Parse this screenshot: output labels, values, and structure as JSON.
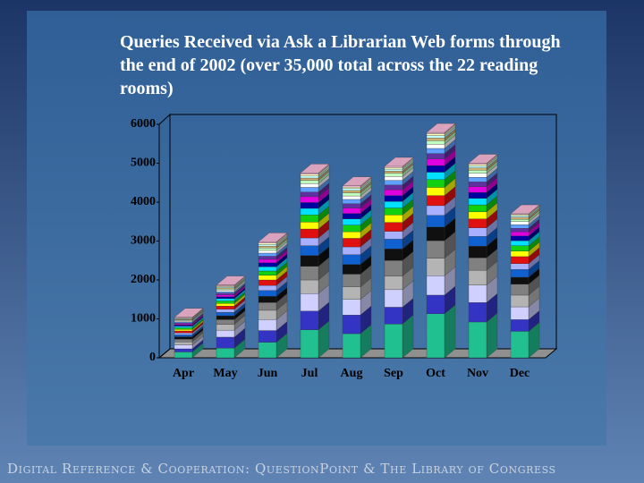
{
  "chart_data": {
    "type": "bar3d-stacked",
    "title": "Queries Received via Ask a Librarian Web forms through the end of 2002 (over 35,000 total across the 22 reading rooms)",
    "categories": [
      "Apr",
      "May",
      "Jun",
      "Jul",
      "Aug",
      "Sep",
      "Oct",
      "Nov",
      "Dec"
    ],
    "ylim": [
      0,
      6000
    ],
    "yticks": [
      0,
      1000,
      2000,
      3000,
      4000,
      5000,
      6000
    ],
    "series": [
      {
        "color": "#20c090",
        "values": [
          150,
          250,
          400,
          720,
          620,
          870,
          1130,
          920,
          680
        ]
      },
      {
        "color": "#3434c4",
        "values": [
          80,
          280,
          300,
          480,
          480,
          430,
          480,
          500,
          300
        ]
      },
      {
        "color": "#d0d0ff",
        "values": [
          100,
          180,
          280,
          450,
          400,
          450,
          500,
          450,
          330
        ]
      },
      {
        "color": "#b4b4b4",
        "values": [
          80,
          150,
          240,
          350,
          320,
          350,
          450,
          380,
          300
        ]
      },
      {
        "color": "#808080",
        "values": [
          70,
          120,
          200,
          350,
          330,
          400,
          450,
          320,
          280
        ]
      },
      {
        "color": "#101010",
        "values": [
          60,
          100,
          160,
          280,
          250,
          300,
          350,
          300,
          180
        ]
      },
      {
        "color": "#1060d0",
        "values": [
          50,
          90,
          150,
          250,
          250,
          250,
          300,
          250,
          200
        ]
      },
      {
        "color": "#a8b0ff",
        "values": [
          50,
          80,
          130,
          200,
          200,
          200,
          250,
          220,
          150
        ]
      },
      {
        "color": "#e01010",
        "values": [
          50,
          80,
          140,
          230,
          220,
          230,
          260,
          230,
          180
        ]
      },
      {
        "color": "#ffff00",
        "values": [
          40,
          70,
          120,
          180,
          170,
          190,
          210,
          180,
          140
        ]
      },
      {
        "color": "#10d010",
        "values": [
          40,
          60,
          110,
          180,
          170,
          180,
          200,
          180,
          140
        ]
      },
      {
        "color": "#00e0ff",
        "values": [
          40,
          60,
          110,
          170,
          160,
          170,
          190,
          170,
          130
        ]
      },
      {
        "color": "#0000a0",
        "values": [
          30,
          50,
          100,
          150,
          140,
          150,
          170,
          150,
          120
        ]
      },
      {
        "color": "#e000e0",
        "values": [
          30,
          50,
          90,
          150,
          140,
          150,
          170,
          150,
          110
        ]
      },
      {
        "color": "#6030a0",
        "values": [
          30,
          40,
          80,
          120,
          110,
          120,
          140,
          120,
          90
        ]
      },
      {
        "color": "#60a0ff",
        "values": [
          25,
          40,
          80,
          120,
          110,
          120,
          130,
          120,
          90
        ]
      },
      {
        "color": "#ffffff",
        "values": [
          25,
          40,
          70,
          100,
          90,
          100,
          110,
          100,
          80
        ]
      },
      {
        "color": "#c0ffc0",
        "values": [
          20,
          30,
          60,
          80,
          80,
          80,
          90,
          80,
          60
        ]
      },
      {
        "color": "#d0b070",
        "values": [
          20,
          30,
          50,
          60,
          60,
          60,
          70,
          60,
          50
        ]
      },
      {
        "color": "#c0ffff",
        "values": [
          20,
          25,
          40,
          50,
          50,
          50,
          60,
          50,
          40
        ]
      },
      {
        "color": "#ffffc0",
        "values": [
          15,
          25,
          40,
          50,
          40,
          40,
          50,
          40,
          30
        ]
      },
      {
        "color": "#ffc0e0",
        "values": [
          15,
          20,
          30,
          30,
          30,
          30,
          30,
          30,
          20
        ]
      }
    ]
  },
  "footer": "Digital Reference & Cooperation: QuestionPoint & The Library of Congress"
}
